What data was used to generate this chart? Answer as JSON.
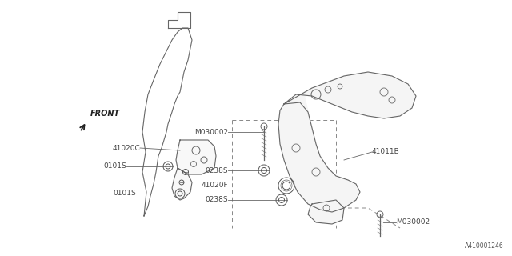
{
  "bg_color": "#ffffff",
  "line_color": "#666666",
  "dashed_color": "#888888",
  "label_color": "#444444",
  "diagram_id": "A410001246",
  "labels": {
    "front": "FRONT",
    "41020C": "41020C",
    "0101S_1": "0101S",
    "0101S_2": "0101S",
    "41011B": "41011B",
    "M030002_1": "M030002",
    "0238S_1": "0238S",
    "41020F": "41020F",
    "0238S_2": "0238S",
    "M030002_2": "M030002"
  }
}
